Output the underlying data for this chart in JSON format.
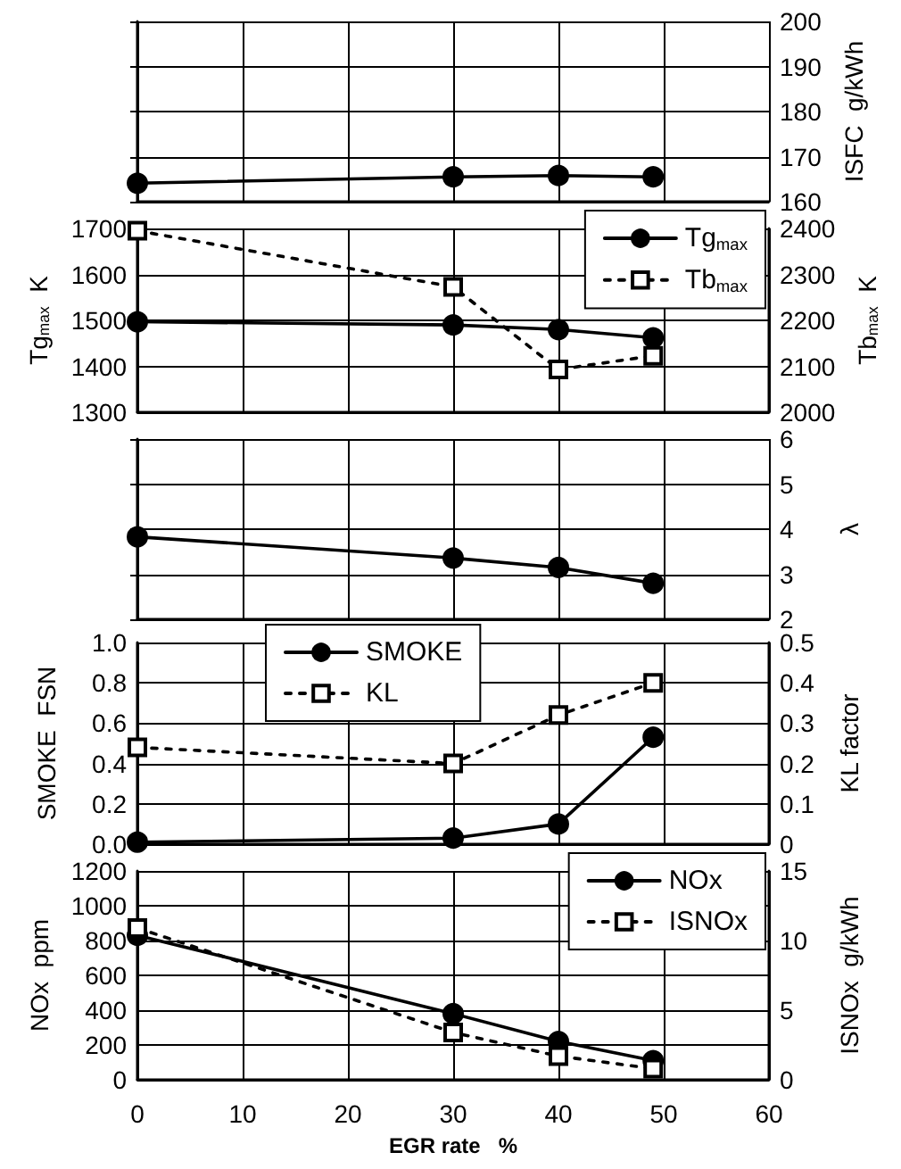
{
  "chart_data": [
    {
      "type": "line",
      "y2label": "ISFC  g/kWh",
      "xlim": [
        0,
        60
      ],
      "xticks": [
        0,
        10,
        20,
        30,
        40,
        50,
        60
      ],
      "y2lim": [
        160,
        200
      ],
      "y2ticks": [
        160,
        170,
        180,
        190,
        200
      ],
      "grid": true,
      "tick_labels": "y",
      "legend": false,
      "x": [
        0,
        30,
        40,
        49
      ],
      "series": [
        {
          "color": "#000000",
          "axis": "y2",
          "marker": "circle",
          "line_style": "solid",
          "values": [
            164.1,
            165.5,
            165.8,
            165.5
          ]
        }
      ]
    },
    {
      "type": "line",
      "ylabel": "Tg$_{max}$  K",
      "y2label": "Tb$_{max}$  K",
      "xlim": [
        0,
        60
      ],
      "xticks": [
        0,
        10,
        20,
        30,
        40,
        50,
        60
      ],
      "ylim": [
        1300,
        1700
      ],
      "yticks": [
        1300,
        1400,
        1500,
        1600,
        1700
      ],
      "y2lim": [
        2000,
        2400
      ],
      "y2ticks": [
        2000,
        2100,
        2200,
        2300,
        2400
      ],
      "grid": true,
      "tick_labels": "y",
      "legend": "top right",
      "x": [
        0,
        30,
        40,
        49
      ],
      "series": [
        {
          "name": "Tg$_{max}$",
          "color": "#000000",
          "marker": "circle",
          "line_style": "solid",
          "values": [
            1497,
            1490,
            1480,
            1462
          ]
        },
        {
          "name": "Tb$_{max}$",
          "color": "#000000",
          "axis": "y2",
          "marker": "square",
          "line_style": "dashed",
          "values": [
            2395,
            2273,
            2093,
            2123
          ]
        }
      ]
    },
    {
      "type": "line",
      "y2label": "λ",
      "xlim": [
        0,
        60
      ],
      "xticks": [
        0,
        10,
        20,
        30,
        40,
        50,
        60
      ],
      "y2lim": [
        2,
        6
      ],
      "y2ticks": [
        2,
        3,
        4,
        5,
        6
      ],
      "grid": true,
      "tick_labels": "y",
      "legend": false,
      "x": [
        0,
        30,
        40,
        49
      ],
      "series": [
        {
          "color": "#000000",
          "axis": "y2",
          "marker": "circle",
          "line_style": "solid",
          "values": [
            3.83,
            3.36,
            3.15,
            2.8
          ]
        }
      ]
    },
    {
      "type": "line",
      "ylabel": "SMOKE  FSN",
      "y2label": "KL factor",
      "xlim": [
        0,
        60
      ],
      "xticks": [
        0,
        10,
        20,
        30,
        40,
        50,
        60
      ],
      "ylim": [
        0,
        1
      ],
      "yticks": [
        {
          "value": 0,
          "label": "0.0"
        },
        0.2,
        0.4,
        0.6,
        0.8,
        {
          "value": 1,
          "label": "1.0"
        }
      ],
      "y2lim": [
        0,
        0.5
      ],
      "y2ticks": [
        0,
        0.1,
        0.2,
        0.3,
        0.4,
        0.5
      ],
      "grid": true,
      "tick_labels": "y",
      "legend": "top left",
      "x": [
        0,
        30,
        40,
        49
      ],
      "series": [
        {
          "name": "SMOKE",
          "color": "#000000",
          "marker": "circle",
          "line_style": "solid",
          "values": [
            0.01,
            0.03,
            0.1,
            0.53
          ]
        },
        {
          "name": "KL",
          "color": "#000000",
          "axis": "y2",
          "marker": "square",
          "line_style": "dashed",
          "values": [
            0.24,
            0.2,
            0.32,
            0.4
          ]
        }
      ]
    },
    {
      "type": "line",
      "xlabel": "EGR rate   %",
      "ylabel": "NOx  ppm",
      "y2label": "ISNOx  g/kWh",
      "xlim": [
        0,
        60
      ],
      "xticks": [
        0,
        10,
        20,
        30,
        40,
        50,
        60
      ],
      "ylim": [
        0,
        1200
      ],
      "yticks": [
        0,
        200,
        400,
        600,
        800,
        1000,
        1200
      ],
      "y2lim": [
        0,
        15
      ],
      "y2ticks": [
        0,
        5,
        10,
        15
      ],
      "grid": true,
      "legend": "top right",
      "x": [
        0,
        30,
        40,
        49
      ],
      "series": [
        {
          "name": "NOx",
          "color": "#000000",
          "marker": "circle",
          "line_style": "solid",
          "values": [
            830,
            380,
            220,
            110
          ]
        },
        {
          "name": "ISNOx",
          "color": "#000000",
          "axis": "y2",
          "marker": "square",
          "line_style": "dashed",
          "values": [
            10.9,
            3.4,
            1.7,
            0.8
          ]
        }
      ]
    }
  ]
}
